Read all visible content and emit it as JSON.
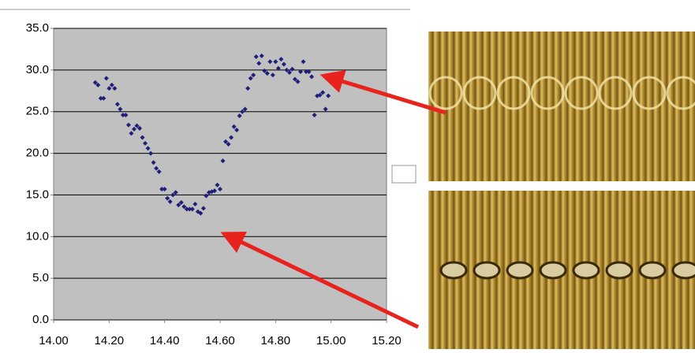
{
  "chart_data": {
    "type": "scatter",
    "color": "#1f1f7a",
    "grid": true,
    "xlim": [
      14.0,
      15.2
    ],
    "ylim": [
      0,
      35
    ],
    "xticks": [
      {
        "value": 14.0,
        "label": "14.00"
      },
      {
        "value": 14.2,
        "label": "14.20"
      },
      {
        "value": 14.4,
        "label": "14.40"
      },
      {
        "value": 14.6,
        "label": "14.60"
      },
      {
        "value": 14.8,
        "label": "14.80"
      },
      {
        "value": 15.0,
        "label": "15.00"
      },
      {
        "value": 15.2,
        "label": "15.20"
      }
    ],
    "yticks": [
      {
        "value": 0,
        "label": "0.0"
      },
      {
        "value": 5,
        "label": "5.0"
      },
      {
        "value": 10,
        "label": "10.0"
      },
      {
        "value": 15,
        "label": "15.0"
      },
      {
        "value": 20,
        "label": "20.0"
      },
      {
        "value": 25,
        "label": "25.0"
      },
      {
        "value": 30,
        "label": "30.0"
      },
      {
        "value": 35,
        "label": "35.0"
      }
    ],
    "x": [
      14.15,
      14.16,
      14.17,
      14.18,
      14.19,
      14.2,
      14.21,
      14.22,
      14.23,
      14.24,
      14.25,
      14.26,
      14.27,
      14.28,
      14.29,
      14.3,
      14.31,
      14.32,
      14.33,
      14.34,
      14.35,
      14.36,
      14.37,
      14.38,
      14.39,
      14.4,
      14.41,
      14.42,
      14.43,
      14.44,
      14.45,
      14.46,
      14.47,
      14.48,
      14.49,
      14.5,
      14.51,
      14.52,
      14.53,
      14.54,
      14.55,
      14.56,
      14.57,
      14.58,
      14.59,
      14.6,
      14.61,
      14.62,
      14.63,
      14.64,
      14.65,
      14.66,
      14.67,
      14.68,
      14.69,
      14.7,
      14.71,
      14.72,
      14.73,
      14.74,
      14.75,
      14.76,
      14.77,
      14.78,
      14.79,
      14.8,
      14.81,
      14.82,
      14.83,
      14.84,
      14.85,
      14.86,
      14.87,
      14.88,
      14.89,
      14.9,
      14.91,
      14.92,
      14.93,
      14.94,
      14.95,
      14.96,
      14.97,
      14.98,
      14.99
    ],
    "values": [
      28.5,
      28.2,
      26.6,
      26.6,
      29.0,
      27.8,
      28.2,
      27.8,
      25.9,
      25.3,
      24.6,
      24.6,
      23.4,
      22.4,
      22.9,
      23.3,
      23.0,
      21.9,
      21.2,
      20.6,
      20.0,
      18.9,
      18.2,
      17.8,
      15.7,
      15.7,
      14.6,
      14.2,
      15.0,
      15.3,
      13.8,
      14.1,
      13.6,
      13.3,
      13.3,
      13.3,
      13.9,
      13.0,
      12.8,
      13.4,
      14.9,
      15.3,
      15.4,
      15.5,
      16.2,
      15.7,
      19.1,
      21.4,
      21.1,
      21.9,
      23.2,
      22.8,
      24.5,
      25.0,
      25.3,
      27.8,
      29.0,
      29.4,
      31.6,
      30.8,
      31.7,
      29.9,
      29.6,
      31.0,
      29.4,
      31.0,
      30.2,
      31.3,
      30.7,
      30.0,
      29.7,
      30.1,
      28.9,
      28.6,
      29.8,
      31.0,
      29.8,
      29.8,
      29.2,
      24.6,
      26.9,
      27.0,
      27.3,
      25.3,
      26.9
    ]
  }
}
